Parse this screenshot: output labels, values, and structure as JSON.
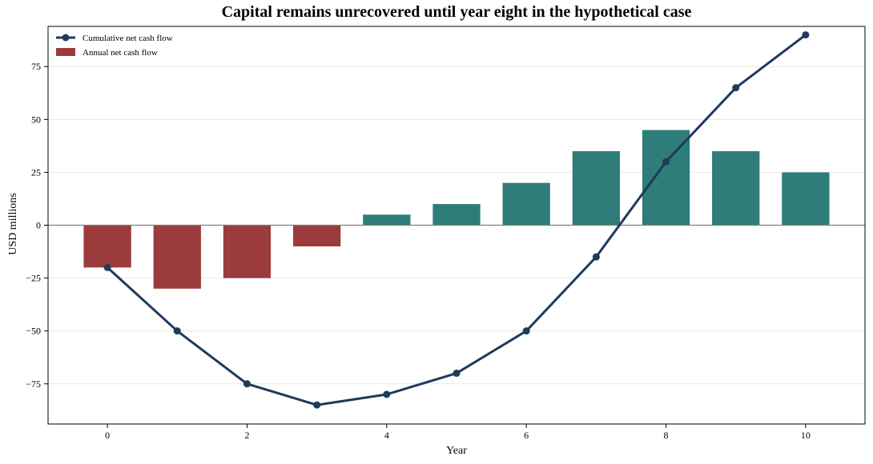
{
  "chart_data": {
    "type": "bar",
    "title": "Capital remains unrecovered until year eight in the hypothetical case",
    "xlabel": "Year",
    "ylabel": "USD millions",
    "x": [
      0,
      1,
      2,
      3,
      4,
      5,
      6,
      7,
      8,
      9,
      10
    ],
    "x_ticks": [
      0,
      2,
      4,
      6,
      8,
      10
    ],
    "xlim": [
      -0.85,
      10.85
    ],
    "ylim": [
      -94,
      94
    ],
    "y_ticks": [
      -75,
      -50,
      -25,
      0,
      25,
      50,
      75
    ],
    "y_tick_labels": [
      "−75",
      "−50",
      "−25",
      "0",
      "25",
      "50",
      "75"
    ],
    "grid": "y-axis only, light",
    "legend_position": "top-left",
    "series": [
      {
        "name": "Annual net cash flow",
        "type": "bar",
        "values": [
          -20,
          -30,
          -25,
          -10,
          5,
          10,
          20,
          35,
          45,
          35,
          25
        ],
        "color_negative": "#9b3b3b",
        "color_positive": "#2e7d79"
      },
      {
        "name": "Cumulative net cash flow",
        "type": "line",
        "values": [
          -20,
          -50,
          -75,
          -85,
          -80,
          -70,
          -50,
          -15,
          30,
          65,
          90
        ],
        "color": "#1f3a5c"
      }
    ],
    "zero_line_color": "#808080",
    "grid_color": "#e8e8e8"
  }
}
